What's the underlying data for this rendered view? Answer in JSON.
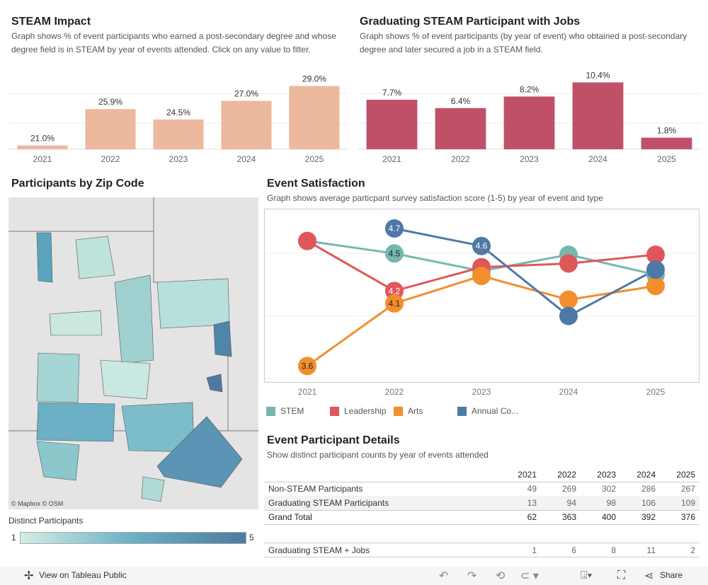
{
  "steam_impact": {
    "title": "STEAM Impact",
    "subtitle": "Graph shows % of event participants who earned a post-secondary degree and whose degree field is in STEAM by year of events attended.  Click on any value to filter."
  },
  "jobs": {
    "title": "Graduating STEAM Participant with Jobs",
    "subtitle": "Graph shows % of event participants (by year of event) who obtained a post-secondary degree and later secured a job in a STEAM field."
  },
  "map": {
    "title": "Participants by Zip Code",
    "attribution": "© Mapbox  © OSM",
    "legend_title": "Distinct Participants",
    "legend_min": "1",
    "legend_max": "5",
    "color_low": "#d3ede6",
    "color_high": "#4f7aa0"
  },
  "satisfaction": {
    "title": "Event Satisfaction",
    "subtitle": "Graph shows average particpant survey satisfaction score (1-5) by year of event and type"
  },
  "details": {
    "title": "Event Participant Details",
    "subtitle": "Show distinct participant counts by year of events attended",
    "columns": [
      "2021",
      "2022",
      "2023",
      "2024",
      "2025"
    ],
    "rows": [
      {
        "label": "Non-STEAM Participants",
        "values": [
          "49",
          "269",
          "302",
          "286",
          "267"
        ]
      },
      {
        "label": "Graduating STEAM Participants",
        "values": [
          "13",
          "94",
          "98",
          "106",
          "109"
        ]
      },
      {
        "label": "Grand Total",
        "values": [
          "62",
          "363",
          "400",
          "392",
          "376"
        ]
      }
    ],
    "jobs_row": {
      "label": "Graduating STEAM + Jobs",
      "values": [
        "1",
        "6",
        "8",
        "11",
        "2"
      ]
    }
  },
  "toolbar": {
    "view_label": "View on Tableau Public",
    "share_label": "Share"
  },
  "chart_data": [
    {
      "type": "bar",
      "categories": [
        "2021",
        "2022",
        "2023",
        "2024",
        "2025"
      ],
      "values": [
        21.0,
        25.9,
        24.5,
        27.0,
        29.0
      ],
      "labels": [
        "21.0%",
        "25.9%",
        "24.5%",
        "27.0%",
        "29.0%"
      ],
      "ylim": [
        20.5,
        30
      ],
      "color": "#ecb99e",
      "grid": true
    },
    {
      "type": "bar",
      "categories": [
        "2021",
        "2022",
        "2023",
        "2024",
        "2025"
      ],
      "values": [
        7.7,
        6.4,
        8.2,
        10.4,
        1.8
      ],
      "labels": [
        "7.7%",
        "6.4%",
        "8.2%",
        "10.4%",
        "1.8%"
      ],
      "ylim": [
        0,
        11
      ],
      "color": "#c05067",
      "grid": true
    },
    {
      "type": "line",
      "categories": [
        "2021",
        "2022",
        "2023",
        "2024",
        "2025"
      ],
      "ylim": [
        3.5,
        4.83
      ],
      "grid": true,
      "legend": "bottom",
      "series": [
        {
          "name": "STEM",
          "color": "#76b7b0",
          "values": [
            4.6,
            4.5,
            4.36,
            4.49,
            4.33
          ],
          "labels": [
            null,
            "4.5",
            null,
            null,
            null
          ]
        },
        {
          "name": "Leadership",
          "color": "#e05759",
          "values": [
            4.6,
            4.2,
            4.39,
            4.42,
            4.49
          ],
          "labels": [
            null,
            "4.2",
            null,
            null,
            null
          ]
        },
        {
          "name": "Arts",
          "color": "#f28e2c",
          "values": [
            3.6,
            4.1,
            4.32,
            4.13,
            4.24
          ],
          "labels": [
            "3.6",
            "4.1",
            null,
            null,
            null
          ]
        },
        {
          "name": "Annual Co...",
          "color": "#4e79a7",
          "values": [
            null,
            4.7,
            4.56,
            4.0,
            4.37
          ],
          "labels": [
            null,
            "4.7",
            "4.6",
            null,
            null
          ]
        }
      ]
    }
  ]
}
